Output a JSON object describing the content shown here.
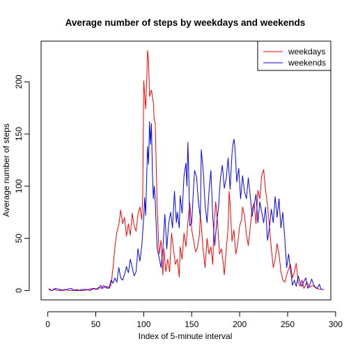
{
  "chart_data": {
    "type": "line",
    "title": "Average number of steps by weekdays and weekends",
    "xlabel": "Index of 5-minute interval",
    "ylabel": "Average number of steps",
    "xlim": [
      -7,
      295
    ],
    "ylim": [
      -9,
      239
    ],
    "xticks": [
      0,
      50,
      100,
      150,
      200,
      250,
      300
    ],
    "yticks": [
      0,
      50,
      100,
      150,
      200
    ],
    "grid": false,
    "legend": "top-right",
    "series": [
      {
        "name": "weekdays",
        "color": "#ff0000",
        "points": [
          [
            1,
            2
          ],
          [
            4,
            0
          ],
          [
            7,
            1
          ],
          [
            10,
            0
          ],
          [
            14,
            0
          ],
          [
            18,
            1
          ],
          [
            22,
            0
          ],
          [
            26,
            0
          ],
          [
            30,
            1
          ],
          [
            34,
            0
          ],
          [
            38,
            0
          ],
          [
            42,
            1
          ],
          [
            46,
            2
          ],
          [
            50,
            1
          ],
          [
            53,
            3
          ],
          [
            56,
            2
          ],
          [
            58,
            5
          ],
          [
            60,
            3
          ],
          [
            62,
            4
          ],
          [
            64,
            2
          ],
          [
            66,
            6
          ],
          [
            68,
            22
          ],
          [
            70,
            42
          ],
          [
            72,
            56
          ],
          [
            74,
            63
          ],
          [
            76,
            77
          ],
          [
            78,
            64
          ],
          [
            80,
            70
          ],
          [
            82,
            52
          ],
          [
            84,
            64
          ],
          [
            86,
            53
          ],
          [
            88,
            74
          ],
          [
            90,
            62
          ],
          [
            92,
            57
          ],
          [
            94,
            73
          ],
          [
            96,
            80
          ],
          [
            98,
            68
          ],
          [
            99,
            92
          ],
          [
            100,
            201
          ],
          [
            102,
            174
          ],
          [
            103,
            198
          ],
          [
            104,
            230
          ],
          [
            105,
            221
          ],
          [
            106,
            186
          ],
          [
            108,
            192
          ],
          [
            110,
            180
          ],
          [
            111,
            163
          ],
          [
            112,
            161
          ],
          [
            114,
            80
          ],
          [
            116,
            35
          ],
          [
            118,
            48
          ],
          [
            120,
            15
          ],
          [
            121,
            40
          ],
          [
            123,
            18
          ],
          [
            125,
            30
          ],
          [
            127,
            18
          ],
          [
            129,
            55
          ],
          [
            131,
            40
          ],
          [
            133,
            25
          ],
          [
            135,
            30
          ],
          [
            137,
            13
          ],
          [
            138,
            42
          ],
          [
            140,
            30
          ],
          [
            142,
            55
          ],
          [
            144,
            42
          ],
          [
            146,
            65
          ],
          [
            148,
            84
          ],
          [
            150,
            58
          ],
          [
            152,
            48
          ],
          [
            154,
            37
          ],
          [
            156,
            41
          ],
          [
            158,
            53
          ],
          [
            159,
            72
          ],
          [
            160,
            63
          ],
          [
            162,
            38
          ],
          [
            164,
            22
          ],
          [
            166,
            50
          ],
          [
            168,
            35
          ],
          [
            170,
            42
          ],
          [
            172,
            25
          ],
          [
            173,
            58
          ],
          [
            175,
            85
          ],
          [
            177,
            65
          ],
          [
            179,
            35
          ],
          [
            181,
            40
          ],
          [
            183,
            25
          ],
          [
            184,
            15
          ],
          [
            186,
            40
          ],
          [
            188,
            60
          ],
          [
            189,
            95
          ],
          [
            190,
            84
          ],
          [
            192,
            47
          ],
          [
            194,
            58
          ],
          [
            196,
            35
          ],
          [
            198,
            45
          ],
          [
            200,
            62
          ],
          [
            202,
            68
          ],
          [
            203,
            80
          ],
          [
            205,
            72
          ],
          [
            207,
            54
          ],
          [
            209,
            43
          ],
          [
            211,
            60
          ],
          [
            213,
            78
          ],
          [
            215,
            84
          ],
          [
            217,
            64
          ],
          [
            219,
            96
          ],
          [
            221,
            88
          ],
          [
            223,
            110
          ],
          [
            225,
            116
          ],
          [
            227,
            96
          ],
          [
            229,
            82
          ],
          [
            231,
            62
          ],
          [
            233,
            40
          ],
          [
            235,
            22
          ],
          [
            237,
            30
          ],
          [
            239,
            45
          ],
          [
            241,
            35
          ],
          [
            243,
            18
          ],
          [
            245,
            10
          ],
          [
            247,
            8
          ],
          [
            250,
            18
          ],
          [
            253,
            25
          ],
          [
            255,
            12
          ],
          [
            257,
            18
          ],
          [
            259,
            26
          ],
          [
            261,
            8
          ],
          [
            263,
            4
          ],
          [
            265,
            10
          ],
          [
            267,
            2
          ],
          [
            270,
            8
          ],
          [
            273,
            3
          ],
          [
            276,
            5
          ],
          [
            280,
            2
          ],
          [
            284,
            1
          ],
          [
            288,
            1
          ]
        ]
      },
      {
        "name": "weekends",
        "color": "#0000ff",
        "points": [
          [
            1,
            1
          ],
          [
            4,
            0
          ],
          [
            8,
            2
          ],
          [
            12,
            1
          ],
          [
            16,
            0
          ],
          [
            20,
            1
          ],
          [
            24,
            2
          ],
          [
            28,
            0
          ],
          [
            32,
            0
          ],
          [
            36,
            1
          ],
          [
            40,
            1
          ],
          [
            44,
            0
          ],
          [
            48,
            2
          ],
          [
            52,
            1
          ],
          [
            55,
            5
          ],
          [
            57,
            2
          ],
          [
            60,
            4
          ],
          [
            62,
            2
          ],
          [
            64,
            3
          ],
          [
            66,
            10
          ],
          [
            68,
            7
          ],
          [
            70,
            12
          ],
          [
            72,
            8
          ],
          [
            74,
            22
          ],
          [
            76,
            12
          ],
          [
            78,
            10
          ],
          [
            80,
            15
          ],
          [
            82,
            23
          ],
          [
            84,
            17
          ],
          [
            86,
            30
          ],
          [
            88,
            22
          ],
          [
            90,
            14
          ],
          [
            92,
            18
          ],
          [
            94,
            40
          ],
          [
            96,
            28
          ],
          [
            98,
            43
          ],
          [
            100,
            70
          ],
          [
            101,
            89
          ],
          [
            102,
            72
          ],
          [
            104,
            138
          ],
          [
            105,
            121
          ],
          [
            106,
            162
          ],
          [
            107,
            140
          ],
          [
            108,
            160
          ],
          [
            109,
            115
          ],
          [
            110,
            88
          ],
          [
            111,
            100
          ],
          [
            112,
            85
          ],
          [
            114,
            40
          ],
          [
            116,
            32
          ],
          [
            118,
            22
          ],
          [
            120,
            40
          ],
          [
            122,
            73
          ],
          [
            124,
            40
          ],
          [
            126,
            64
          ],
          [
            128,
            75
          ],
          [
            130,
            60
          ],
          [
            132,
            95
          ],
          [
            134,
            65
          ],
          [
            135,
            75
          ],
          [
            137,
            60
          ],
          [
            138,
            91
          ],
          [
            140,
            74
          ],
          [
            142,
            110
          ],
          [
            144,
            122
          ],
          [
            145,
            100
          ],
          [
            146,
            142
          ],
          [
            147,
            110
          ],
          [
            148,
            62
          ],
          [
            150,
            65
          ],
          [
            152,
            99
          ],
          [
            153,
            115
          ],
          [
            155,
            109
          ],
          [
            157,
            85
          ],
          [
            159,
            70
          ],
          [
            160,
            135
          ],
          [
            162,
            115
          ],
          [
            164,
            82
          ],
          [
            166,
            65
          ],
          [
            168,
            95
          ],
          [
            170,
            115
          ],
          [
            172,
            70
          ],
          [
            174,
            43
          ],
          [
            176,
            65
          ],
          [
            178,
            80
          ],
          [
            180,
            108
          ],
          [
            182,
            120
          ],
          [
            184,
            98
          ],
          [
            186,
            108
          ],
          [
            188,
            127
          ],
          [
            190,
            97
          ],
          [
            192,
            131
          ],
          [
            193,
            140
          ],
          [
            194,
            145
          ],
          [
            195,
            138
          ],
          [
            197,
            104
          ],
          [
            199,
            117
          ],
          [
            201,
            88
          ],
          [
            203,
            110
          ],
          [
            205,
            95
          ],
          [
            207,
            88
          ],
          [
            209,
            108
          ],
          [
            211,
            91
          ],
          [
            213,
            71
          ],
          [
            215,
            82
          ],
          [
            217,
            92
          ],
          [
            219,
            65
          ],
          [
            221,
            85
          ],
          [
            223,
            75
          ],
          [
            225,
            65
          ],
          [
            227,
            80
          ],
          [
            229,
            48
          ],
          [
            231,
            60
          ],
          [
            233,
            78
          ],
          [
            235,
            65
          ],
          [
            237,
            90
          ],
          [
            239,
            70
          ],
          [
            241,
            88
          ],
          [
            243,
            60
          ],
          [
            245,
            75
          ],
          [
            247,
            50
          ],
          [
            249,
            22
          ],
          [
            251,
            35
          ],
          [
            253,
            20
          ],
          [
            255,
            5
          ],
          [
            257,
            10
          ],
          [
            259,
            4
          ],
          [
            261,
            14
          ],
          [
            263,
            8
          ],
          [
            265,
            4
          ],
          [
            267,
            9
          ],
          [
            269,
            12
          ],
          [
            271,
            2
          ],
          [
            273,
            5
          ],
          [
            275,
            11
          ],
          [
            277,
            6
          ],
          [
            279,
            3
          ],
          [
            281,
            2
          ],
          [
            283,
            6
          ],
          [
            285,
            1
          ],
          [
            288,
            1
          ]
        ]
      }
    ]
  }
}
